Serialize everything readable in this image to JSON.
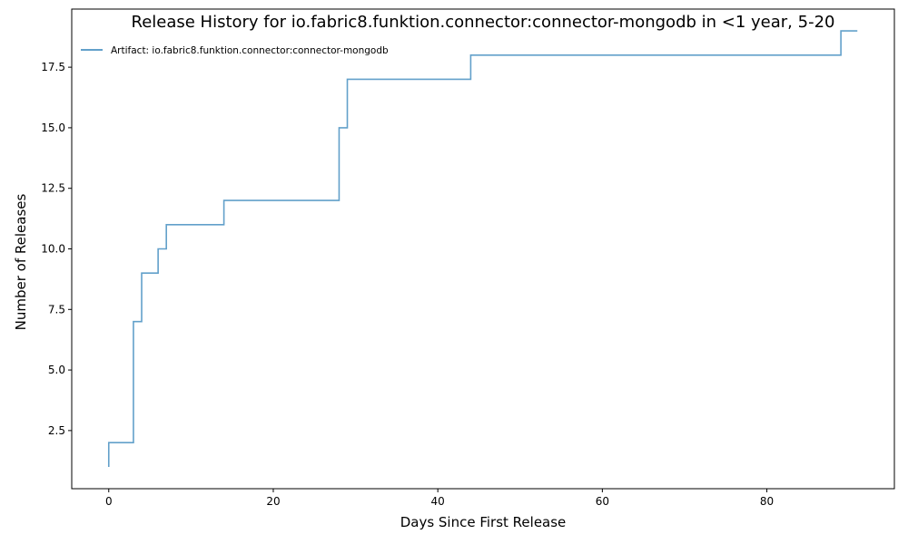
{
  "chart_data": {
    "type": "line",
    "drawstyle": "steps-post",
    "title": "Release History for io.fabric8.funktion.connector:connector-mongodb in <1 year, 5-20",
    "xlabel": "Days Since First Release",
    "ylabel": "Number of Releases",
    "xlim": [
      -4.5,
      95.5
    ],
    "ylim": [
      0.1,
      19.9
    ],
    "xticks": [
      0,
      20,
      40,
      60,
      80
    ],
    "xtick_labels": [
      "0",
      "20",
      "40",
      "60",
      "80"
    ],
    "yticks": [
      2.5,
      5.0,
      7.5,
      10.0,
      12.5,
      15.0,
      17.5
    ],
    "ytick_labels": [
      "2.5",
      "5.0",
      "7.5",
      "10.0",
      "12.5",
      "15.0",
      "17.5"
    ],
    "grid": false,
    "legend_position": "top-left",
    "series": [
      {
        "name": "Artifact: io.fabric8.funktion.connector:connector-mongodb",
        "color": "#1f77b4",
        "opacity": 0.7,
        "x": [
          0,
          0,
          3,
          4,
          6,
          7,
          14,
          28,
          29,
          44,
          89,
          91
        ],
        "y": [
          1,
          2,
          7,
          9,
          10,
          11,
          12,
          15,
          17,
          18,
          19,
          19
        ]
      }
    ]
  }
}
